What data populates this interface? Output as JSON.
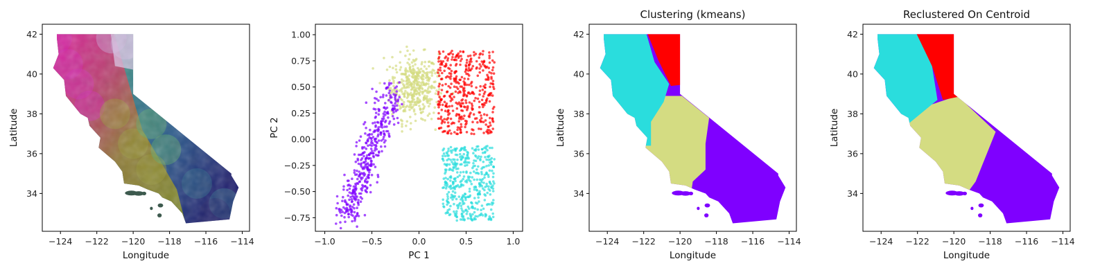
{
  "chart_data": [
    {
      "type": "scatter",
      "title": "",
      "xlabel": "Longitude",
      "ylabel": "Latitude",
      "xlim": [
        -125,
        -113.6
      ],
      "ylim": [
        32.1,
        42.5
      ],
      "xticks": [
        -124,
        -122,
        -120,
        -118,
        -116,
        -114
      ],
      "yticks": [
        34,
        36,
        38,
        40,
        42
      ],
      "xtick_labels": [
        "−124",
        "−122",
        "−120",
        "−118",
        "−116",
        "−114"
      ],
      "ytick_labels": [
        "34",
        "36",
        "38",
        "40",
        "42"
      ],
      "grid": false,
      "description_of_marks": "California map colored continuously by 3 PCA components as RGB",
      "series": [
        {
          "color": "#d12ab0",
          "region": "north-coast",
          "points": [
            [
              -124.2,
              41.8
            ],
            [
              -123.6,
              40.5
            ],
            [
              -123.0,
              39.5
            ],
            [
              -122.4,
              38.4
            ]
          ]
        },
        {
          "color": "#c7a7d8",
          "region": "north-mountains",
          "points": [
            [
              -121.2,
              41.8
            ],
            [
              -120.4,
              41.5
            ]
          ]
        },
        {
          "color": "#9a9a3a",
          "region": "central-valley",
          "points": [
            [
              -121.0,
              38.0
            ],
            [
              -120.0,
              36.5
            ],
            [
              -119.0,
              35.2
            ]
          ]
        },
        {
          "color": "#5ba86a",
          "region": "sierra",
          "points": [
            [
              -119.0,
              37.5
            ],
            [
              -118.2,
              36.2
            ]
          ]
        },
        {
          "color": "#2f6b8a",
          "region": "southeast",
          "points": [
            [
              -116.5,
              34.5
            ],
            [
              -115.0,
              33.5
            ]
          ]
        },
        {
          "color": "#23266a",
          "region": "desert",
          "points": [
            [
              -115.5,
              33.0
            ]
          ]
        }
      ]
    },
    {
      "type": "scatter",
      "title": "",
      "xlabel": "PC 1",
      "ylabel": "PC 2",
      "xlim": [
        -1.1,
        1.1
      ],
      "ylim": [
        -0.88,
        1.1
      ],
      "xticks": [
        -1.0,
        -0.5,
        0.0,
        0.5,
        1.0
      ],
      "yticks": [
        -0.75,
        -0.5,
        -0.25,
        0.0,
        0.25,
        0.5,
        0.75,
        1.0
      ],
      "xtick_labels": [
        "−1.0",
        "−0.5",
        "0.0",
        "0.5",
        "1.0"
      ],
      "ytick_labels": [
        "−0.75",
        "−0.50",
        "−0.25",
        "0.00",
        "0.25",
        "0.50",
        "0.75",
        "1.00"
      ],
      "grid": false,
      "series": [
        {
          "cluster": 0,
          "color": "#7f00ff",
          "center": [
            -0.55,
            -0.1
          ],
          "spread": [
            0.12,
            0.28
          ]
        },
        {
          "cluster": 1,
          "color": "#d4dc82",
          "center": [
            -0.05,
            0.5
          ],
          "spread": [
            0.18,
            0.22
          ]
        },
        {
          "cluster": 2,
          "color": "#ff0000",
          "center": [
            0.5,
            0.45
          ],
          "spread": [
            0.18,
            0.22
          ]
        },
        {
          "cluster": 3,
          "color": "#2adddd",
          "center": [
            0.55,
            -0.42
          ],
          "spread": [
            0.16,
            0.17
          ]
        }
      ]
    },
    {
      "type": "scatter",
      "title": "Clustering (kmeans)",
      "xlabel": "Longitude",
      "ylabel": "Latitude",
      "xlim": [
        -125,
        -113.6
      ],
      "ylim": [
        32.1,
        42.5
      ],
      "xticks": [
        -124,
        -122,
        -120,
        -118,
        -116,
        -114
      ],
      "yticks": [
        34,
        36,
        38,
        40,
        42
      ],
      "xtick_labels": [
        "−124",
        "−122",
        "−120",
        "−118",
        "−116",
        "−114"
      ],
      "ytick_labels": [
        "34",
        "36",
        "38",
        "40",
        "42"
      ],
      "grid": false,
      "clusters": [
        {
          "color": "#2adddd"
        },
        {
          "color": "#ff0000"
        },
        {
          "color": "#d4dc82"
        },
        {
          "color": "#7f00ff"
        }
      ]
    },
    {
      "type": "scatter",
      "title": "Reclustered On Centroid",
      "xlabel": "Longitude",
      "ylabel": "Latitude",
      "xlim": [
        -125,
        -113.6
      ],
      "ylim": [
        32.1,
        42.5
      ],
      "xticks": [
        -124,
        -122,
        -120,
        -118,
        -116,
        -114
      ],
      "yticks": [
        34,
        36,
        38,
        40,
        42
      ],
      "xtick_labels": [
        "−124",
        "−122",
        "−120",
        "−118",
        "−116",
        "−114"
      ],
      "ytick_labels": [
        "34",
        "36",
        "38",
        "40",
        "42"
      ],
      "grid": false,
      "clusters": [
        {
          "color": "#2adddd"
        },
        {
          "color": "#ff0000"
        },
        {
          "color": "#d4dc82"
        },
        {
          "color": "#7f00ff"
        }
      ]
    }
  ]
}
